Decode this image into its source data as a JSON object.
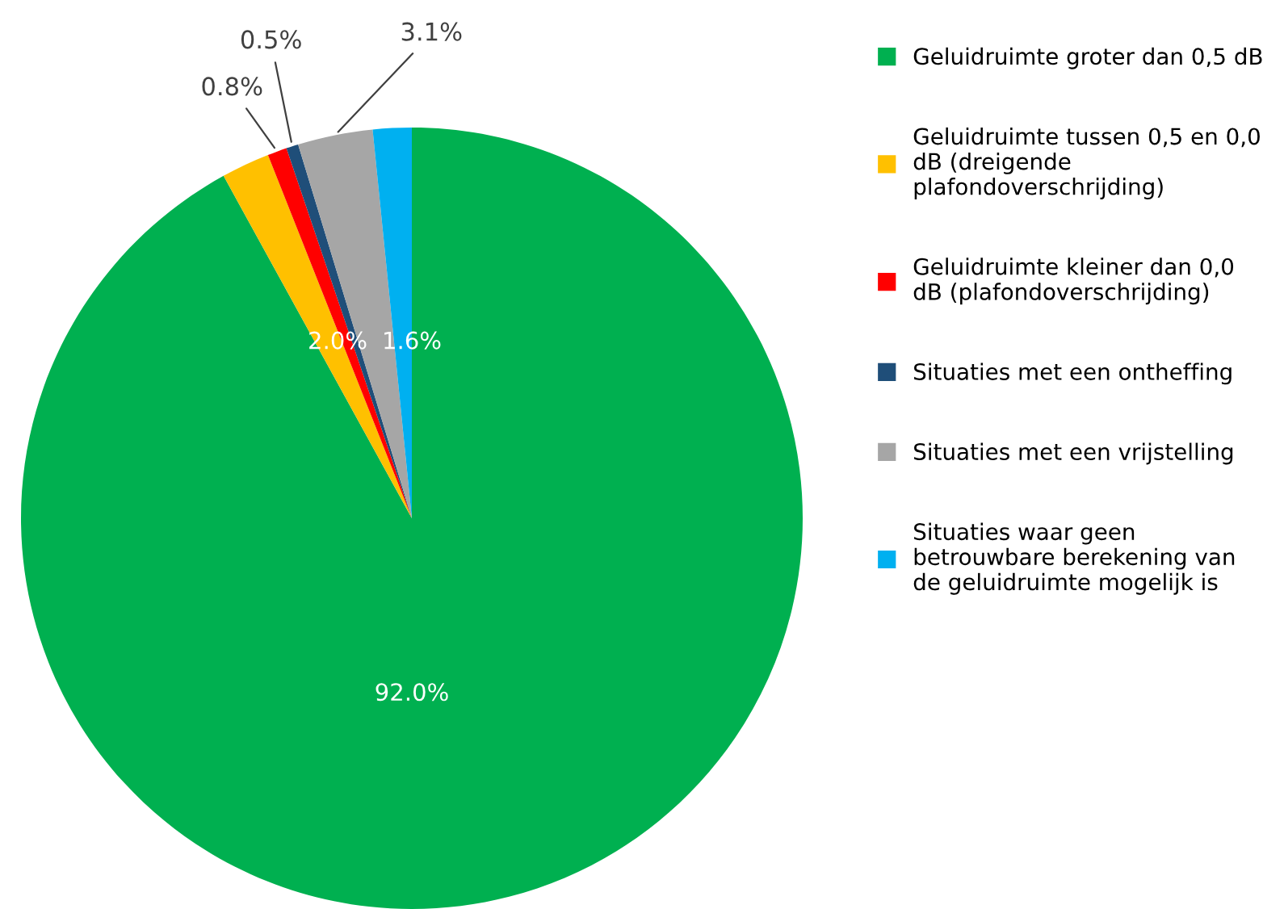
{
  "chart_data": {
    "type": "pie",
    "categories": [
      "Geluidruimte groter dan 0,5 dB",
      "Geluidruimte tussen 0,5 en 0,0\ndB (dreigende\nplafondoverschrijding)",
      "Geluidruimte kleiner dan 0,0\ndB (plafondoverschrijding)",
      "Situaties met een ontheffing",
      "Situaties met een vrijstelling",
      "Situaties waar geen\nbetrouwbare berekening van\nde geluidruimte mogelijk is"
    ],
    "values": [
      92.0,
      2.0,
      0.8,
      0.5,
      3.1,
      1.6
    ],
    "colors": [
      "#00b050",
      "#ffc000",
      "#ff0000",
      "#1f4e79",
      "#a6a6a6",
      "#00b0f0"
    ],
    "value_labels": [
      "92.0%",
      "2.0%",
      "0.8%",
      "0.5%",
      "3.1%",
      "1.6%"
    ],
    "legend": "right"
  }
}
